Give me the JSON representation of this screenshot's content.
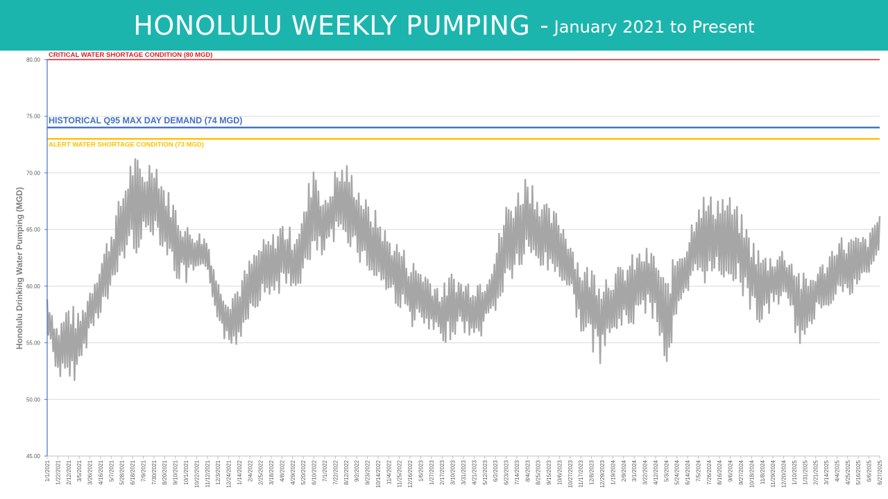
{
  "header": {
    "title": "HONOLULU WEEKLY PUMPING",
    "separator": "-",
    "subtitle": "January 2021 to Present"
  },
  "colors": {
    "banner": "#1cb5ae",
    "series": "#a6a6a6",
    "critical": "#e31c23",
    "historical": "#4472c4",
    "alert": "#ffc000",
    "axis": "#4472c4",
    "grid": "#d9d9d9"
  },
  "chart_data": {
    "type": "line",
    "ylabel": "Honolulu Drinking Water Pumping (MGD)",
    "ylim": [
      45,
      80
    ],
    "y_ticks": [
      "45.00",
      "50.00",
      "55.00",
      "60.00",
      "65.00",
      "70.00",
      "75.00",
      "80.00"
    ],
    "grid": true,
    "x_start": "1/1/2021",
    "x_end": "6/27/2025",
    "x_tick_labels": [
      "1/1/2021",
      "1/22/2021",
      "2/12/2021",
      "3/5/2021",
      "3/26/2021",
      "4/16/2021",
      "5/7/2021",
      "5/28/2021",
      "6/18/2021",
      "7/9/2021",
      "7/30/2021",
      "8/20/2021",
      "9/10/2021",
      "10/1/2021",
      "10/22/2021",
      "11/12/2021",
      "12/3/2021",
      "12/24/2021",
      "1/14/2022",
      "2/4/2022",
      "2/25/2022",
      "3/18/2022",
      "4/8/2022",
      "4/29/2022",
      "5/20/2022",
      "6/10/2022",
      "7/1/2022",
      "7/22/2022",
      "8/12/2022",
      "9/2/2022",
      "9/23/2022",
      "10/14/2022",
      "11/4/2022",
      "11/25/2022",
      "12/16/2022",
      "1/6/2023",
      "1/27/2023",
      "2/17/2023",
      "3/10/2023",
      "3/31/2023",
      "4/21/2023",
      "5/12/2023",
      "6/2/2023",
      "6/23/2023",
      "7/14/2023",
      "8/4/2023",
      "8/25/2023",
      "9/15/2023",
      "10/6/2023",
      "10/27/2023",
      "11/17/2023",
      "12/8/2023",
      "12/29/2023",
      "1/19/2024",
      "2/9/2024",
      "3/1/2024",
      "3/22/2024",
      "4/12/2024",
      "5/3/2024",
      "5/24/2024",
      "6/14/2024",
      "7/5/2024",
      "7/26/2024",
      "8/16/2024",
      "9/6/2024",
      "9/27/2024",
      "10/18/2024",
      "11/8/2024",
      "11/29/2024",
      "12/20/2024",
      "1/10/2025",
      "1/31/2025",
      "2/21/2025",
      "3/14/2025",
      "4/4/2025",
      "4/25/2025",
      "5/16/2025",
      "6/6/2025",
      "6/27/2025"
    ],
    "reference_lines": [
      {
        "label": "CRITICAL WATER SHORTAGE CONDITION (80 MGD)",
        "value": 80,
        "color": "#e31c23"
      },
      {
        "label": "HISTORICAL Q95 MAX DAY DEMAND (74 MGD)",
        "value": 74,
        "color": "#4472c4"
      },
      {
        "label": "ALERT WATER SHORTAGE CONDITION (73 MGD)",
        "value": 73,
        "color": "#ffc000"
      }
    ],
    "series": [
      {
        "x": [
          "1/1/2021",
          "1/22/2021",
          "2/12/2021",
          "3/5/2021",
          "3/26/2021",
          "4/16/2021",
          "5/7/2021",
          "5/28/2021",
          "6/18/2021",
          "7/9/2021",
          "7/30/2021",
          "8/20/2021",
          "9/10/2021",
          "10/1/2021",
          "10/22/2021",
          "11/12/2021",
          "12/3/2021",
          "12/24/2021",
          "1/14/2022",
          "2/4/2022",
          "2/25/2022",
          "3/18/2022",
          "4/8/2022",
          "4/29/2022",
          "5/20/2022",
          "6/10/2022",
          "7/1/2022",
          "7/22/2022",
          "8/12/2022",
          "9/2/2022",
          "9/23/2022",
          "10/14/2022",
          "11/4/2022",
          "11/25/2022",
          "12/16/2022",
          "1/6/2023",
          "1/27/2023",
          "2/17/2023",
          "3/10/2023",
          "3/31/2023",
          "4/21/2023",
          "5/12/2023",
          "6/2/2023",
          "6/23/2023",
          "7/14/2023",
          "8/4/2023",
          "8/25/2023",
          "9/15/2023",
          "10/6/2023",
          "10/27/2023",
          "11/17/2023",
          "12/8/2023",
          "12/29/2023",
          "1/19/2024",
          "2/9/2024",
          "3/1/2024",
          "3/22/2024",
          "4/12/2024",
          "5/3/2024",
          "5/24/2024",
          "6/14/2024",
          "7/5/2024",
          "7/26/2024",
          "8/16/2024",
          "9/6/2024",
          "9/27/2024",
          "10/18/2024",
          "11/8/2024",
          "11/29/2024",
          "12/20/2024",
          "1/10/2025",
          "1/31/2025",
          "2/21/2025",
          "3/14/2025",
          "4/4/2025",
          "4/25/2025",
          "5/16/2025",
          "6/6/2025",
          "6/27/2025"
        ],
        "high": [
          59.5,
          56.5,
          59.0,
          57.5,
          60.0,
          62.5,
          65.5,
          68.5,
          72.0,
          70.5,
          72.0,
          69.0,
          67.5,
          65.5,
          65.0,
          64.5,
          60.5,
          59.5,
          60.5,
          62.5,
          64.0,
          64.5,
          66.0,
          65.0,
          66.5,
          72.0,
          67.5,
          70.5,
          71.0,
          69.5,
          67.5,
          66.5,
          64.5,
          64.0,
          62.5,
          62.0,
          61.0,
          60.0,
          61.5,
          60.5,
          61.0,
          61.0,
          63.5,
          67.5,
          68.5,
          70.5,
          68.5,
          67.0,
          66.5,
          64.5,
          62.0,
          62.0,
          61.5,
          61.5,
          62.0,
          63.0,
          63.5,
          63.0,
          60.5,
          63.5,
          64.5,
          68.5,
          68.0,
          68.5,
          68.0,
          66.5,
          64.5,
          63.0,
          63.0,
          63.5,
          62.5,
          61.0,
          61.5,
          62.5,
          64.5,
          64.5,
          64.5,
          64.5,
          67.0
        ],
        "low": [
          55.5,
          52.0,
          50.5,
          52.5,
          55.5,
          57.5,
          58.5,
          62.0,
          62.5,
          63.5,
          64.5,
          63.0,
          60.5,
          60.0,
          61.0,
          60.5,
          57.0,
          54.0,
          55.0,
          57.5,
          58.5,
          59.0,
          59.5,
          59.0,
          60.5,
          61.5,
          62.5,
          63.5,
          64.0,
          62.5,
          61.0,
          60.0,
          59.0,
          58.0,
          56.5,
          56.0,
          55.5,
          54.5,
          55.5,
          56.0,
          54.5,
          56.0,
          57.5,
          59.5,
          61.0,
          61.5,
          61.5,
          61.0,
          60.5,
          59.0,
          56.0,
          54.0,
          53.0,
          55.5,
          56.0,
          56.5,
          57.5,
          57.0,
          52.5,
          56.5,
          58.5,
          60.5,
          60.0,
          60.5,
          60.5,
          59.5,
          57.5,
          56.0,
          58.0,
          58.5,
          56.0,
          53.5,
          57.5,
          58.0,
          59.0,
          58.5,
          59.5,
          61.0,
          62.0
        ]
      }
    ]
  }
}
